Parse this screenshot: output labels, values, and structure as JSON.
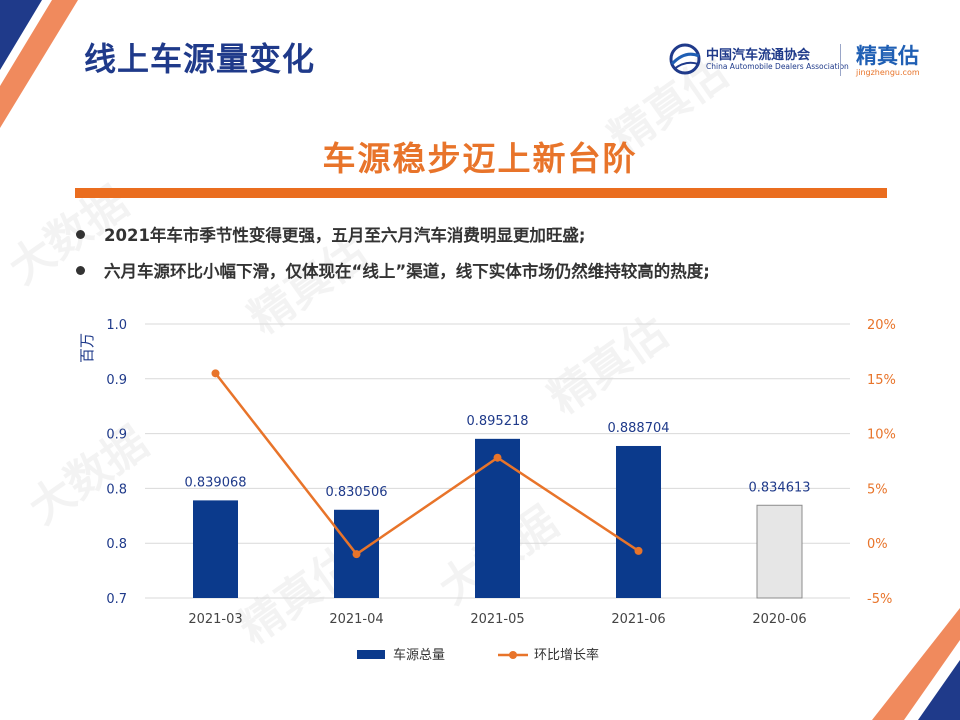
{
  "page": {
    "title": "线上车源量变化",
    "headline": "车源稳步迈上新台阶",
    "bullets": [
      "2021年车市季节性变得更强，五月至六月汽车消费明显更加旺盛;",
      "六月车源环比小幅下滑，仅体现在“线上”渠道，线下实体市场仍然维持较高的热度;"
    ]
  },
  "logos": {
    "caada_name": "中国汽车流通协会",
    "caada_en": "China Automobile Dealers Association",
    "jingzhengu_name": "精真估",
    "jingzhengu_url": "jingzhengu.com"
  },
  "watermarks": [
    "精真估",
    "大数据",
    "精真估",
    "大数据",
    "精真估",
    "大数据",
    "精真估"
  ],
  "colors": {
    "title_blue": "#1f3a8a",
    "accent_orange": "#e8742a",
    "bar_blue": "#0b3a8c",
    "bar_gray": "#e6e6e6"
  },
  "chart_data": {
    "type": "bar+line",
    "categories": [
      "2021-03",
      "2021-04",
      "2021-05",
      "2021-06",
      "2020-06"
    ],
    "ylabel": "百万",
    "y_ticks": [
      "0.7",
      "0.8",
      "0.8",
      "0.9",
      "0.9",
      "1.0"
    ],
    "y2_ticks": [
      "-5%",
      "0%",
      "5%",
      "10%",
      "15%",
      "20%"
    ],
    "ylim": [
      0.75,
      1.0
    ],
    "y2lim": [
      -5,
      20
    ],
    "grid": true,
    "legend_position": "bottom",
    "series": [
      {
        "name": "车源总量",
        "type": "bar",
        "axis": "left",
        "values": [
          0.839068,
          0.830506,
          0.895218,
          0.888704,
          0.834613
        ],
        "labels": [
          "0.839068",
          "0.830506",
          "0.895218",
          "0.888704",
          "0.834613"
        ],
        "colors": [
          "#0b3a8c",
          "#0b3a8c",
          "#0b3a8c",
          "#0b3a8c",
          "#e6e6e6"
        ]
      },
      {
        "name": "环比增长率",
        "type": "line",
        "axis": "right",
        "values": [
          15.5,
          -1.0,
          7.8,
          -0.7,
          null
        ],
        "color": "#e8742a"
      }
    ]
  }
}
